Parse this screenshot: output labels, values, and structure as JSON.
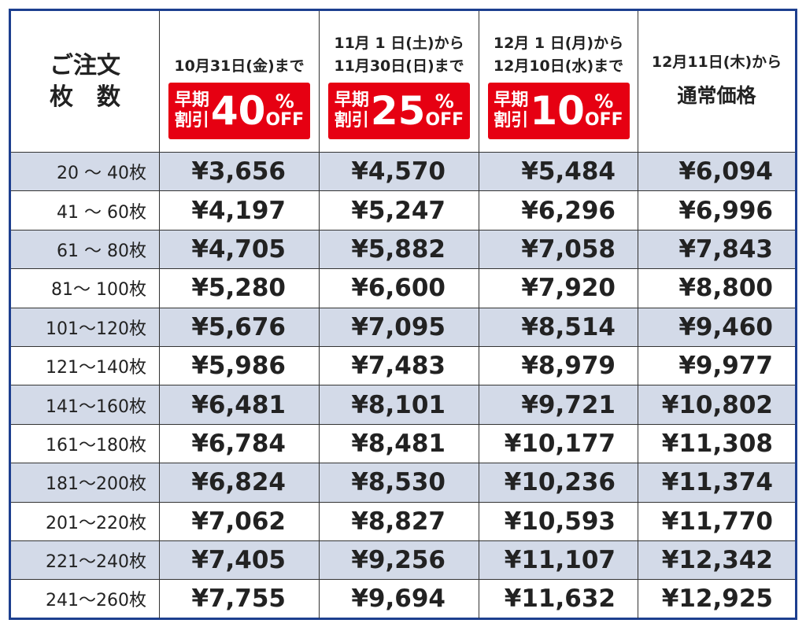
{
  "header": {
    "quantity_label": [
      "ご注文",
      "枚　数"
    ],
    "columns": [
      {
        "dates": [
          "10月31日(金)まで"
        ],
        "badge": {
          "label": [
            "早期",
            "割引"
          ],
          "discount": "40",
          "percent": "%",
          "off": "OFF"
        }
      },
      {
        "dates": [
          "11月 1 日(土)から",
          "11月30日(日)まで"
        ],
        "badge": {
          "label": [
            "早期",
            "割引"
          ],
          "discount": "25",
          "percent": "%",
          "off": "OFF"
        }
      },
      {
        "dates": [
          "12月 1 日(月)から",
          "12月10日(水)まで"
        ],
        "badge": {
          "label": [
            "早期",
            "割引"
          ],
          "discount": "10",
          "percent": "%",
          "off": "OFF"
        }
      },
      {
        "dates": [
          "12月11日(木)から"
        ],
        "label": "通常価格"
      }
    ]
  },
  "table": {
    "rows": [
      [
        "20 ～ 40枚",
        "¥3,656",
        "¥4,570",
        "¥5,484",
        "¥6,094"
      ],
      [
        "41 ～ 60枚",
        "¥4,197",
        "¥5,247",
        "¥6,296",
        "¥6,996"
      ],
      [
        "61 ～ 80枚",
        "¥4,705",
        "¥5,882",
        "¥7,058",
        "¥7,843"
      ],
      [
        "81～ 100枚",
        "¥5,280",
        "¥6,600",
        "¥7,920",
        "¥8,800"
      ],
      [
        "101～120枚",
        "¥5,676",
        "¥7,095",
        "¥8,514",
        "¥9,460"
      ],
      [
        "121～140枚",
        "¥5,986",
        "¥7,483",
        "¥8,979",
        "¥9,977"
      ],
      [
        "141～160枚",
        "¥6,481",
        "¥8,101",
        "¥9,721",
        "¥10,802"
      ],
      [
        "161～180枚",
        "¥6,784",
        "¥8,481",
        "¥10,177",
        "¥11,308"
      ],
      [
        "181～200枚",
        "¥6,824",
        "¥8,530",
        "¥10,236",
        "¥11,374"
      ],
      [
        "201～220枚",
        "¥7,062",
        "¥8,827",
        "¥10,593",
        "¥11,770"
      ],
      [
        "221～240枚",
        "¥7,405",
        "¥9,256",
        "¥11,107",
        "¥12,342"
      ],
      [
        "241～260枚",
        "¥7,755",
        "¥9,694",
        "¥11,632",
        "¥12,925"
      ]
    ]
  }
}
